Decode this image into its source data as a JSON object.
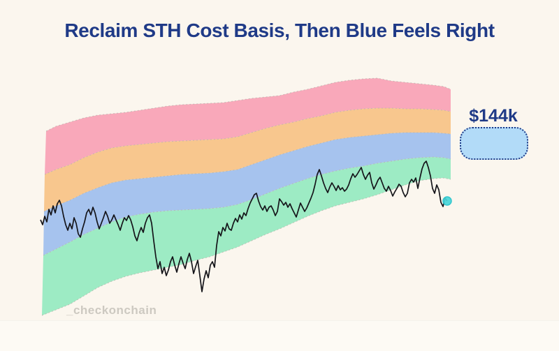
{
  "title": "Reclaim STH Cost Basis, Then Blue Feels Right",
  "watermark": "_checkonchain",
  "annotation": {
    "label": "$144k"
  },
  "colors": {
    "background": "#fbf6ee",
    "title_text": "#1f3a87",
    "band_red": "#f9a8ba",
    "band_orange": "#f8c78e",
    "band_blue": "#a6c3ee",
    "band_green": "#9debc4",
    "band_edge": "#b9b5ac",
    "price_line": "#15151a",
    "marker_fill": "#49d6da",
    "marker_stroke": "#23c3cb",
    "annotation_box_fill": "#b2dbf8",
    "annotation_box_border": "#1f3a87",
    "watermark_text": "#cdc9c1"
  },
  "chart_data": {
    "type": "area",
    "title": "Reclaim STH Cost Basis, Then Blue Feels Right",
    "legend": "none",
    "axes": "none (stylized, unlabeled)",
    "annotation": {
      "label": "$144k",
      "meaning": "price target aligned with blue band"
    },
    "pixel_space": [
      800,
      503
    ],
    "bands": [
      {
        "name": "red-band",
        "color": "#f9a8ba",
        "top": "pink_top",
        "bottom": "pink_orange"
      },
      {
        "name": "orange-band",
        "color": "#f8c78e",
        "top": "pink_orange",
        "bottom": "orange_blue"
      },
      {
        "name": "blue-band",
        "color": "#a6c3ee",
        "top": "orange_blue",
        "bottom": "blue_green"
      },
      {
        "name": "green-band",
        "color": "#9debc4",
        "top": "blue_green",
        "bottom": "green_bottom"
      }
    ],
    "boundaries": {
      "pink_top": [
        [
          66,
          188
        ],
        [
          80,
          181
        ],
        [
          100,
          175
        ],
        [
          120,
          169
        ],
        [
          140,
          165
        ],
        [
          160,
          163
        ],
        [
          180,
          161
        ],
        [
          200,
          158
        ],
        [
          220,
          155
        ],
        [
          240,
          152
        ],
        [
          260,
          150
        ],
        [
          280,
          149
        ],
        [
          300,
          148
        ],
        [
          320,
          147
        ],
        [
          340,
          144
        ],
        [
          360,
          141
        ],
        [
          380,
          139
        ],
        [
          400,
          137
        ],
        [
          420,
          132
        ],
        [
          440,
          128
        ],
        [
          460,
          123
        ],
        [
          480,
          118
        ],
        [
          500,
          115
        ],
        [
          520,
          113
        ],
        [
          540,
          112
        ],
        [
          560,
          116
        ],
        [
          580,
          118
        ],
        [
          600,
          120
        ],
        [
          620,
          122
        ],
        [
          635,
          124
        ],
        [
          645,
          128
        ]
      ],
      "pink_orange": [
        [
          64,
          250
        ],
        [
          80,
          243
        ],
        [
          100,
          236
        ],
        [
          120,
          226
        ],
        [
          140,
          218
        ],
        [
          160,
          212
        ],
        [
          180,
          209
        ],
        [
          200,
          207
        ],
        [
          220,
          205
        ],
        [
          240,
          203
        ],
        [
          260,
          202
        ],
        [
          280,
          201
        ],
        [
          300,
          200
        ],
        [
          320,
          199
        ],
        [
          340,
          196
        ],
        [
          360,
          190
        ],
        [
          380,
          184
        ],
        [
          400,
          179
        ],
        [
          420,
          175
        ],
        [
          440,
          170
        ],
        [
          460,
          166
        ],
        [
          480,
          161
        ],
        [
          500,
          158
        ],
        [
          520,
          156
        ],
        [
          540,
          155
        ],
        [
          560,
          155
        ],
        [
          580,
          156
        ],
        [
          600,
          156
        ],
        [
          620,
          157
        ],
        [
          635,
          158
        ],
        [
          645,
          160
        ]
      ],
      "orange_blue": [
        [
          63,
          303
        ],
        [
          80,
          295
        ],
        [
          100,
          287
        ],
        [
          120,
          277
        ],
        [
          140,
          269
        ],
        [
          160,
          262
        ],
        [
          180,
          258
        ],
        [
          200,
          256
        ],
        [
          220,
          254
        ],
        [
          240,
          252
        ],
        [
          260,
          250
        ],
        [
          280,
          249
        ],
        [
          300,
          248
        ],
        [
          320,
          246
        ],
        [
          340,
          243
        ],
        [
          360,
          236
        ],
        [
          380,
          229
        ],
        [
          400,
          222
        ],
        [
          420,
          216
        ],
        [
          440,
          210
        ],
        [
          460,
          205
        ],
        [
          480,
          200
        ],
        [
          500,
          197
        ],
        [
          520,
          195
        ],
        [
          540,
          193
        ],
        [
          560,
          191
        ],
        [
          580,
          190
        ],
        [
          600,
          190
        ],
        [
          620,
          190
        ],
        [
          635,
          191
        ],
        [
          645,
          192
        ]
      ],
      "blue_green": [
        [
          62,
          366
        ],
        [
          80,
          357
        ],
        [
          100,
          347
        ],
        [
          120,
          336
        ],
        [
          140,
          327
        ],
        [
          160,
          318
        ],
        [
          180,
          311
        ],
        [
          200,
          307
        ],
        [
          220,
          304
        ],
        [
          240,
          302
        ],
        [
          260,
          301
        ],
        [
          280,
          300
        ],
        [
          300,
          299
        ],
        [
          320,
          297
        ],
        [
          340,
          293
        ],
        [
          360,
          286
        ],
        [
          380,
          278
        ],
        [
          400,
          270
        ],
        [
          420,
          263
        ],
        [
          440,
          256
        ],
        [
          460,
          250
        ],
        [
          480,
          245
        ],
        [
          500,
          241
        ],
        [
          520,
          238
        ],
        [
          540,
          234
        ],
        [
          560,
          231
        ],
        [
          580,
          228
        ],
        [
          600,
          226
        ],
        [
          620,
          225
        ],
        [
          635,
          226
        ],
        [
          645,
          228
        ]
      ],
      "green_bottom": [
        [
          60,
          452
        ],
        [
          80,
          444
        ],
        [
          100,
          436
        ],
        [
          120,
          424
        ],
        [
          140,
          412
        ],
        [
          160,
          403
        ],
        [
          180,
          396
        ],
        [
          200,
          391
        ],
        [
          220,
          387
        ],
        [
          240,
          383
        ],
        [
          260,
          379
        ],
        [
          280,
          373
        ],
        [
          300,
          368
        ],
        [
          320,
          361
        ],
        [
          340,
          354
        ],
        [
          360,
          345
        ],
        [
          380,
          336
        ],
        [
          400,
          328
        ],
        [
          420,
          319
        ],
        [
          440,
          310
        ],
        [
          460,
          302
        ],
        [
          480,
          295
        ],
        [
          500,
          290
        ],
        [
          520,
          285
        ],
        [
          540,
          279
        ],
        [
          560,
          272
        ],
        [
          580,
          265
        ],
        [
          600,
          259
        ],
        [
          620,
          256
        ],
        [
          635,
          255
        ],
        [
          645,
          257
        ]
      ]
    },
    "price": [
      [
        58,
        315
      ],
      [
        61,
        322
      ],
      [
        64,
        310
      ],
      [
        67,
        318
      ],
      [
        70,
        300
      ],
      [
        73,
        308
      ],
      [
        76,
        295
      ],
      [
        79,
        305
      ],
      [
        82,
        292
      ],
      [
        85,
        287
      ],
      [
        88,
        295
      ],
      [
        91,
        310
      ],
      [
        94,
        322
      ],
      [
        97,
        330
      ],
      [
        100,
        320
      ],
      [
        103,
        328
      ],
      [
        106,
        312
      ],
      [
        109,
        320
      ],
      [
        112,
        335
      ],
      [
        115,
        340
      ],
      [
        118,
        328
      ],
      [
        121,
        318
      ],
      [
        124,
        305
      ],
      [
        127,
        300
      ],
      [
        130,
        308
      ],
      [
        133,
        297
      ],
      [
        136,
        305
      ],
      [
        139,
        318
      ],
      [
        142,
        328
      ],
      [
        145,
        320
      ],
      [
        148,
        312
      ],
      [
        151,
        303
      ],
      [
        154,
        310
      ],
      [
        157,
        320
      ],
      [
        160,
        315
      ],
      [
        163,
        308
      ],
      [
        166,
        315
      ],
      [
        169,
        322
      ],
      [
        172,
        330
      ],
      [
        175,
        320
      ],
      [
        178,
        312
      ],
      [
        181,
        316
      ],
      [
        184,
        309
      ],
      [
        187,
        315
      ],
      [
        190,
        325
      ],
      [
        193,
        338
      ],
      [
        196,
        345
      ],
      [
        199,
        334
      ],
      [
        202,
        326
      ],
      [
        205,
        333
      ],
      [
        208,
        320
      ],
      [
        211,
        312
      ],
      [
        214,
        308
      ],
      [
        217,
        320
      ],
      [
        220,
        345
      ],
      [
        223,
        368
      ],
      [
        226,
        385
      ],
      [
        229,
        375
      ],
      [
        232,
        392
      ],
      [
        235,
        383
      ],
      [
        238,
        395
      ],
      [
        241,
        387
      ],
      [
        244,
        375
      ],
      [
        247,
        368
      ],
      [
        250,
        380
      ],
      [
        253,
        390
      ],
      [
        256,
        378
      ],
      [
        259,
        368
      ],
      [
        262,
        377
      ],
      [
        265,
        385
      ],
      [
        268,
        372
      ],
      [
        271,
        363
      ],
      [
        274,
        375
      ],
      [
        277,
        392
      ],
      [
        280,
        382
      ],
      [
        283,
        373
      ],
      [
        286,
        395
      ],
      [
        289,
        418
      ],
      [
        292,
        400
      ],
      [
        295,
        388
      ],
      [
        298,
        398
      ],
      [
        301,
        380
      ],
      [
        304,
        375
      ],
      [
        307,
        383
      ],
      [
        310,
        352
      ],
      [
        313,
        332
      ],
      [
        316,
        338
      ],
      [
        319,
        326
      ],
      [
        322,
        331
      ],
      [
        325,
        320
      ],
      [
        328,
        328
      ],
      [
        331,
        330
      ],
      [
        334,
        320
      ],
      [
        337,
        313
      ],
      [
        340,
        318
      ],
      [
        343,
        308
      ],
      [
        346,
        314
      ],
      [
        349,
        305
      ],
      [
        352,
        309
      ],
      [
        355,
        299
      ],
      [
        358,
        291
      ],
      [
        361,
        285
      ],
      [
        364,
        279
      ],
      [
        367,
        277
      ],
      [
        370,
        288
      ],
      [
        373,
        296
      ],
      [
        376,
        301
      ],
      [
        379,
        295
      ],
      [
        382,
        303
      ],
      [
        385,
        297
      ],
      [
        388,
        295
      ],
      [
        391,
        301
      ],
      [
        394,
        309
      ],
      [
        397,
        303
      ],
      [
        400,
        285
      ],
      [
        403,
        289
      ],
      [
        406,
        294
      ],
      [
        409,
        290
      ],
      [
        412,
        297
      ],
      [
        415,
        292
      ],
      [
        418,
        299
      ],
      [
        421,
        305
      ],
      [
        424,
        311
      ],
      [
        427,
        301
      ],
      [
        430,
        291
      ],
      [
        433,
        297
      ],
      [
        436,
        303
      ],
      [
        439,
        298
      ],
      [
        442,
        291
      ],
      [
        445,
        284
      ],
      [
        448,
        276
      ],
      [
        451,
        264
      ],
      [
        454,
        250
      ],
      [
        457,
        243
      ],
      [
        460,
        252
      ],
      [
        463,
        262
      ],
      [
        466,
        270
      ],
      [
        469,
        276
      ],
      [
        472,
        268
      ],
      [
        475,
        262
      ],
      [
        478,
        267
      ],
      [
        481,
        273
      ],
      [
        484,
        266
      ],
      [
        487,
        272
      ],
      [
        490,
        269
      ],
      [
        493,
        274
      ],
      [
        496,
        271
      ],
      [
        499,
        265
      ],
      [
        502,
        256
      ],
      [
        505,
        249
      ],
      [
        508,
        254
      ],
      [
        511,
        250
      ],
      [
        514,
        245
      ],
      [
        517,
        240
      ],
      [
        520,
        250
      ],
      [
        523,
        257
      ],
      [
        526,
        251
      ],
      [
        529,
        247
      ],
      [
        532,
        262
      ],
      [
        535,
        271
      ],
      [
        538,
        265
      ],
      [
        541,
        258
      ],
      [
        544,
        254
      ],
      [
        547,
        262
      ],
      [
        550,
        270
      ],
      [
        553,
        274
      ],
      [
        556,
        267
      ],
      [
        559,
        273
      ],
      [
        562,
        281
      ],
      [
        565,
        275
      ],
      [
        568,
        270
      ],
      [
        571,
        264
      ],
      [
        574,
        267
      ],
      [
        577,
        276
      ],
      [
        580,
        282
      ],
      [
        583,
        277
      ],
      [
        586,
        262
      ],
      [
        589,
        257
      ],
      [
        592,
        261
      ],
      [
        595,
        255
      ],
      [
        598,
        270
      ],
      [
        601,
        255
      ],
      [
        604,
        242
      ],
      [
        607,
        234
      ],
      [
        610,
        231
      ],
      [
        613,
        240
      ],
      [
        616,
        252
      ],
      [
        619,
        270
      ],
      [
        622,
        277
      ],
      [
        625,
        265
      ],
      [
        628,
        272
      ],
      [
        631,
        290
      ],
      [
        634,
        296
      ],
      [
        637,
        284
      ],
      [
        640,
        288
      ]
    ],
    "marker_end": [
      640,
      288
    ]
  }
}
